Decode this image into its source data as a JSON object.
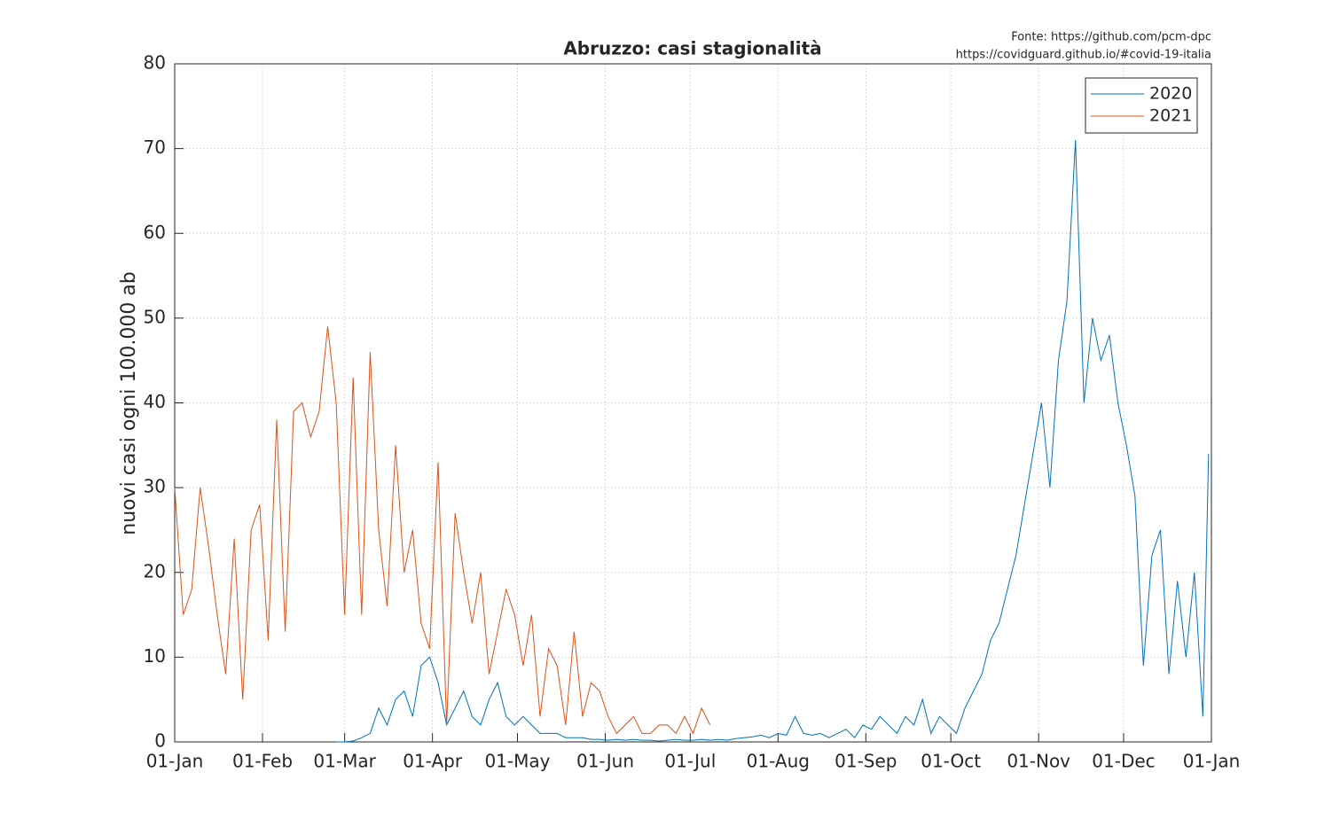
{
  "chart_data": {
    "type": "line",
    "title": "Abruzzo: casi stagionalità",
    "annotations": [
      "Fonte: https://github.com/pcm-dpc",
      "https://covidguard.github.io/#covid-19-italia"
    ],
    "y_label": "nuovi casi ogni 100.000 ab",
    "x": [
      0,
      3,
      6,
      9,
      12,
      15,
      18,
      21,
      24,
      27,
      30,
      33,
      36,
      39,
      42,
      45,
      48,
      51,
      54,
      57,
      60,
      63,
      66,
      69,
      72,
      75,
      78,
      81,
      84,
      87,
      90,
      93,
      96,
      99,
      102,
      105,
      108,
      111,
      114,
      117,
      120,
      123,
      126,
      129,
      132,
      135,
      138,
      141,
      144,
      147,
      150,
      153,
      156,
      159,
      162,
      165,
      168,
      171,
      174,
      177,
      180,
      183,
      186,
      189,
      192,
      195,
      198,
      201,
      204,
      207,
      210,
      213,
      216,
      219,
      222,
      225,
      228,
      231,
      234,
      237,
      240,
      243,
      246,
      249,
      252,
      255,
      258,
      261,
      264,
      267,
      270,
      273,
      276,
      279,
      282,
      285,
      288,
      291,
      294,
      297,
      300,
      303,
      306,
      309,
      312,
      315,
      318,
      321,
      324,
      327,
      330,
      333,
      336,
      339,
      342,
      345,
      348,
      351,
      354,
      357,
      360,
      363,
      365
    ],
    "series": [
      {
        "name": "2020",
        "color": "#0072bd",
        "values": [
          null,
          null,
          null,
          null,
          null,
          null,
          null,
          null,
          null,
          null,
          null,
          null,
          null,
          null,
          null,
          null,
          null,
          null,
          null,
          0,
          0,
          0.1,
          0.5,
          1,
          4,
          2,
          5,
          6,
          3,
          9,
          10,
          7,
          2,
          4,
          6,
          3,
          2,
          5,
          7,
          3,
          2,
          3,
          2,
          1,
          1,
          1,
          0.5,
          0.5,
          0.5,
          0.3,
          0.3,
          0.2,
          0.3,
          0.2,
          0.3,
          0.2,
          0.2,
          0.1,
          0.2,
          0.3,
          0.2,
          0.2,
          0.3,
          0.2,
          0.3,
          0.2,
          0.4,
          0.5,
          0.6,
          0.8,
          0.5,
          1,
          0.8,
          3,
          1,
          0.8,
          1,
          0.5,
          1,
          1.5,
          0.5,
          2,
          1.5,
          3,
          2,
          1,
          3,
          2,
          5,
          1,
          3,
          2,
          1,
          4,
          6,
          8,
          12,
          14,
          18,
          22,
          28,
          34,
          40,
          30,
          45,
          52,
          71,
          40,
          50,
          45,
          48,
          40,
          35,
          29,
          9,
          22,
          25,
          8,
          19,
          10,
          20,
          3,
          34
        ]
      },
      {
        "name": "2021",
        "color": "#d95319",
        "values": [
          30,
          15,
          18,
          30,
          23,
          15,
          8,
          24,
          5,
          25,
          28,
          12,
          38,
          13,
          39,
          40,
          36,
          39,
          49,
          40,
          15,
          43,
          15,
          46,
          25,
          16,
          35,
          20,
          25,
          14,
          11,
          33,
          2,
          27,
          20,
          14,
          20,
          8,
          13,
          18,
          15,
          9,
          15,
          3,
          11,
          9,
          2,
          13,
          3,
          7,
          6,
          3,
          1,
          2,
          3,
          1,
          1,
          2,
          2,
          1,
          3,
          1,
          4,
          2,
          null,
          null,
          null,
          null,
          null,
          null,
          null,
          null,
          null,
          null,
          null,
          null,
          null,
          null,
          null,
          null,
          null,
          null,
          null,
          null,
          null,
          null,
          null,
          null,
          null,
          null,
          null,
          null,
          null,
          null,
          null,
          null,
          null,
          null,
          null,
          null,
          null,
          null,
          null,
          null,
          null,
          null,
          null,
          null,
          null,
          null,
          null,
          null,
          null,
          null,
          null,
          null,
          null,
          null,
          null,
          null,
          null,
          null,
          null
        ]
      }
    ],
    "xlim": [
      0,
      366
    ],
    "xticks": [
      {
        "value": 0,
        "label": "01-Jan"
      },
      {
        "value": 31,
        "label": "01-Feb"
      },
      {
        "value": 60,
        "label": "01-Mar"
      },
      {
        "value": 91,
        "label": "01-Apr"
      },
      {
        "value": 121,
        "label": "01-May"
      },
      {
        "value": 152,
        "label": "01-Jun"
      },
      {
        "value": 182,
        "label": "01-Jul"
      },
      {
        "value": 213,
        "label": "01-Aug"
      },
      {
        "value": 244,
        "label": "01-Sep"
      },
      {
        "value": 274,
        "label": "01-Oct"
      },
      {
        "value": 305,
        "label": "01-Nov"
      },
      {
        "value": 335,
        "label": "01-Dec"
      },
      {
        "value": 366,
        "label": "01-Jan"
      }
    ],
    "ylim": [
      0,
      80
    ],
    "yticks": [
      0,
      10,
      20,
      30,
      40,
      50,
      60,
      70,
      80
    ],
    "grid": true,
    "legend": "top-right"
  }
}
